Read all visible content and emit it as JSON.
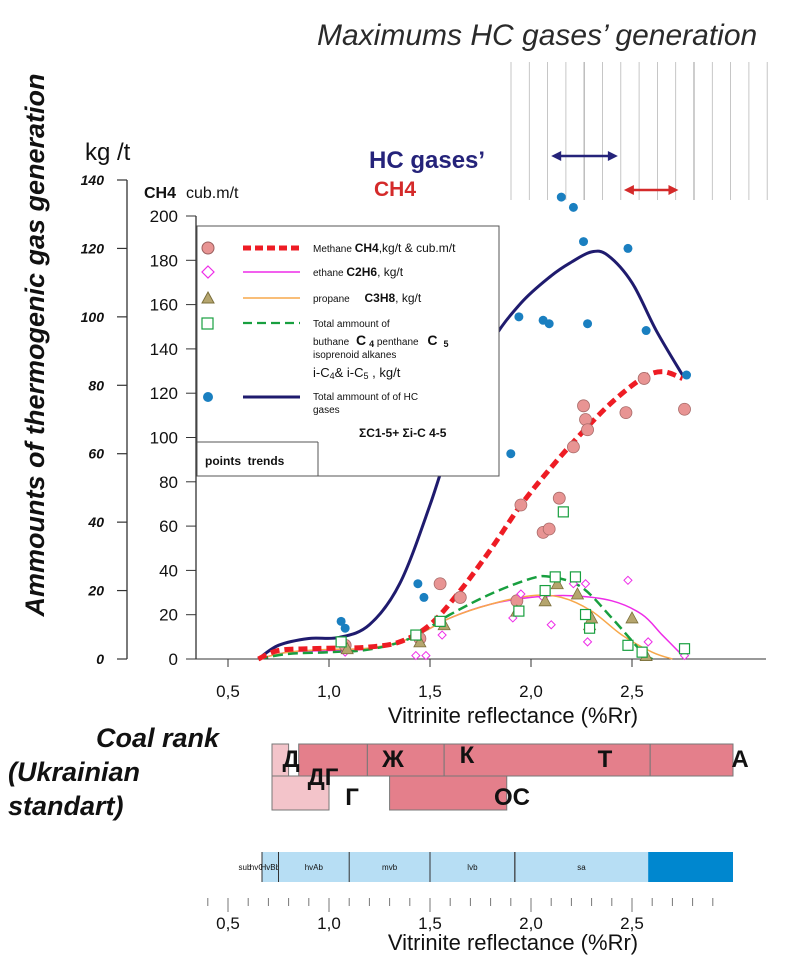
{
  "title": "Maximums HC gases’ generation",
  "y_axis_title": "Ammounts of thermogenic gas generation",
  "left_axis_unit": "kg /t",
  "right_axis_unit": "cub.m/t",
  "right_axis_unit_prefix": "CH4",
  "x_axis_title": "Vitrinite reflectance (%Rr)",
  "max_labels": {
    "hc_gases": "HC gases’",
    "ch4": "CH4"
  },
  "legend": {
    "methane": {
      "text": "Methane ",
      "formula": "CH4",
      "unit": ",kg/t & cub.m/t"
    },
    "ethane": {
      "text": "ethane ",
      "formula": "C2H6",
      "unit": ", kg/t"
    },
    "propane": {
      "text": "propane ",
      "formula": "C3H8",
      "unit": ", kg/t"
    },
    "c5_line1": "Total ammount of",
    "c5_line2_a": "buthane ",
    "c5_line2_b": "C",
    "c5_line2_c": "4",
    "c5_line2_d": " penthane ",
    "c5_line2_e": "C",
    "c5_line2_f": "5",
    "c5_line3": "isoprenoid alkanes",
    "c5_line4_a": "i-C",
    "c5_line4_b": "4",
    "c5_line4_c": "& i-C",
    "c5_line4_d": "5",
    "c5_line4_e": " ,   kg/t",
    "total_line1": "Total ammount of of HC",
    "total_line2": "gases",
    "sum_formula": "ΣC1-5+ Σi-C 4-5",
    "points_trends": "points  trends"
  },
  "coal_rank": {
    "title_line1": "Coal rank",
    "title_line2": "(Ukrainian",
    "title_line3": "standart)",
    "labels": [
      "Д",
      "ДГ",
      "Г",
      "Ж",
      "К",
      "Т",
      "А",
      "ОС"
    ]
  },
  "asme": {
    "labels": [
      "sub",
      "hvCb",
      "HvBb",
      "hvAb",
      "mvb",
      "lvb",
      "sa"
    ]
  },
  "colors": {
    "methane": "#ee1c24",
    "ethane": "#ee2ce8",
    "propane": "#f7a84b",
    "c5": "#189f3f",
    "total": "#1f1b6e",
    "total_points": "#1a7fc0",
    "methane_points": "#e89493",
    "propane_points": "#b5a56e",
    "rank_fill": "#e47f8b",
    "rank_light": "#f3c4ca",
    "asme_fill": "#b7def4",
    "asme_dark": "#0087cf",
    "hc_arrow": "#25237a",
    "ch4_arrow": "#d42a2a"
  },
  "chart_data": {
    "type": "scatter",
    "title": "Maximums HC gases’ generation",
    "xlabel": "Vitrinite reflectance (%Rr)",
    "ylabel": "Ammounts of thermogenic gas generation",
    "xlim": [
      0,
      3.0
    ],
    "ylim_kg_t": [
      0,
      140
    ],
    "ylim_cub_m_t": [
      0,
      200
    ],
    "x_ticks": [
      "0,5",
      "1,0",
      "1,5",
      "2,0",
      "2,5"
    ],
    "y_ticks_kg_t": [
      0,
      20,
      40,
      60,
      80,
      100,
      120,
      140
    ],
    "y_ticks_cub_m_t": [
      0,
      20,
      40,
      60,
      80,
      100,
      120,
      140,
      160,
      180,
      200
    ],
    "series": [
      {
        "name": "Methane CH4,kg/t & cub.m/t",
        "kind": "points",
        "unit": "kg/t",
        "points": [
          [
            1.08,
            4
          ],
          [
            1.45,
            6
          ],
          [
            1.55,
            22
          ],
          [
            1.65,
            18
          ],
          [
            1.93,
            17
          ],
          [
            1.95,
            45
          ],
          [
            2.06,
            37
          ],
          [
            2.09,
            38
          ],
          [
            2.14,
            47
          ],
          [
            2.21,
            62
          ],
          [
            2.26,
            74
          ],
          [
            2.27,
            70
          ],
          [
            2.28,
            67
          ],
          [
            2.47,
            72
          ],
          [
            2.56,
            82
          ],
          [
            2.76,
            73
          ]
        ]
      },
      {
        "name": "ethane C2H6, kg/t",
        "kind": "points",
        "unit": "kg/t",
        "points": [
          [
            1.08,
            2
          ],
          [
            1.43,
            1
          ],
          [
            1.48,
            1
          ],
          [
            1.56,
            7
          ],
          [
            1.91,
            12
          ],
          [
            1.95,
            19
          ],
          [
            2.06,
            18
          ],
          [
            2.1,
            10
          ],
          [
            2.21,
            22
          ],
          [
            2.27,
            22
          ],
          [
            2.28,
            5
          ],
          [
            2.48,
            23
          ],
          [
            2.58,
            5
          ],
          [
            2.76,
            1
          ]
        ]
      },
      {
        "name": "propane C3H8, kg/t",
        "kind": "points",
        "unit": "kg/t",
        "points": [
          [
            1.09,
            3
          ],
          [
            1.45,
            5
          ],
          [
            1.57,
            10
          ],
          [
            1.93,
            14
          ],
          [
            2.07,
            17
          ],
          [
            2.13,
            22
          ],
          [
            2.23,
            19
          ],
          [
            2.29,
            10
          ],
          [
            2.3,
            12
          ],
          [
            2.5,
            12
          ],
          [
            2.57,
            1
          ]
        ]
      },
      {
        "name": "Total ammount of buthane C4 penthane C5 isoprenoid alkanes i-C4& i-C5, kg/t",
        "kind": "points",
        "unit": "kg/t",
        "points": [
          [
            1.06,
            5
          ],
          [
            1.43,
            7
          ],
          [
            1.55,
            11
          ],
          [
            1.94,
            14
          ],
          [
            2.07,
            20
          ],
          [
            2.12,
            24
          ],
          [
            2.16,
            43
          ],
          [
            2.22,
            24
          ],
          [
            2.27,
            13
          ],
          [
            2.29,
            9
          ],
          [
            2.48,
            4
          ],
          [
            2.55,
            2
          ],
          [
            2.76,
            3
          ]
        ]
      },
      {
        "name": "Total ammount of of HC gases",
        "kind": "points",
        "unit": "kg/t",
        "points": [
          [
            1.06,
            11
          ],
          [
            1.08,
            9
          ],
          [
            1.44,
            22
          ],
          [
            1.47,
            18
          ],
          [
            1.55,
            63
          ],
          [
            1.65,
            58
          ],
          [
            1.9,
            60
          ],
          [
            1.94,
            100
          ],
          [
            2.06,
            99
          ],
          [
            2.09,
            98
          ],
          [
            2.15,
            135
          ],
          [
            2.21,
            132
          ],
          [
            2.26,
            122
          ],
          [
            2.28,
            98
          ],
          [
            2.48,
            120
          ],
          [
            2.57,
            96
          ],
          [
            2.77,
            83
          ]
        ]
      },
      {
        "name": "Methane CH4,kg/t & cub.m/t",
        "kind": "trend",
        "unit": "kg/t",
        "points": [
          [
            0.65,
            0
          ],
          [
            0.75,
            2.5
          ],
          [
            0.9,
            3
          ],
          [
            1.05,
            3.2
          ],
          [
            1.2,
            3.5
          ],
          [
            1.35,
            5
          ],
          [
            1.5,
            10
          ],
          [
            1.65,
            20
          ],
          [
            1.8,
            32
          ],
          [
            1.95,
            45
          ],
          [
            2.1,
            56
          ],
          [
            2.25,
            66
          ],
          [
            2.4,
            75
          ],
          [
            2.55,
            82
          ],
          [
            2.65,
            84
          ],
          [
            2.75,
            82
          ]
        ]
      },
      {
        "name": "ethane C2H6, kg/t",
        "kind": "trend",
        "unit": "kg/t",
        "points": [
          [
            0.65,
            0
          ],
          [
            0.8,
            2
          ],
          [
            1.0,
            2.5
          ],
          [
            1.2,
            3
          ],
          [
            1.4,
            6
          ],
          [
            1.6,
            12
          ],
          [
            1.8,
            16
          ],
          [
            2.0,
            18
          ],
          [
            2.2,
            18.5
          ],
          [
            2.4,
            17
          ],
          [
            2.55,
            13
          ],
          [
            2.65,
            7
          ],
          [
            2.75,
            1
          ]
        ]
      },
      {
        "name": "propane C3H8, kg/t",
        "kind": "trend",
        "unit": "kg/t",
        "points": [
          [
            0.65,
            0
          ],
          [
            0.8,
            2
          ],
          [
            1.0,
            2.8
          ],
          [
            1.2,
            3.2
          ],
          [
            1.4,
            6
          ],
          [
            1.6,
            12
          ],
          [
            1.8,
            16
          ],
          [
            2.0,
            18.5
          ],
          [
            2.15,
            18
          ],
          [
            2.3,
            14
          ],
          [
            2.45,
            7
          ],
          [
            2.6,
            2
          ],
          [
            2.7,
            0
          ]
        ]
      },
      {
        "name": "Total ammount of buthane C4 penthane C5 isoprenoid alkanes i-C4& i-C5, kg/t",
        "kind": "trend",
        "unit": "kg/t",
        "points": [
          [
            0.65,
            0
          ],
          [
            0.8,
            1.5
          ],
          [
            1.0,
            2
          ],
          [
            1.2,
            2.8
          ],
          [
            1.4,
            6
          ],
          [
            1.6,
            13
          ],
          [
            1.8,
            19
          ],
          [
            2.0,
            23.5
          ],
          [
            2.1,
            24
          ],
          [
            2.25,
            21
          ],
          [
            2.4,
            12
          ],
          [
            2.55,
            2
          ],
          [
            2.6,
            0
          ]
        ]
      },
      {
        "name": "Total ammount of of HC gases",
        "kind": "trend",
        "unit": "kg/t",
        "points": [
          [
            0.65,
            0
          ],
          [
            0.75,
            4
          ],
          [
            0.9,
            6
          ],
          [
            1.05,
            6.3
          ],
          [
            1.2,
            10
          ],
          [
            1.35,
            22
          ],
          [
            1.5,
            45
          ],
          [
            1.65,
            72
          ],
          [
            1.8,
            92
          ],
          [
            1.95,
            104
          ],
          [
            2.1,
            112
          ],
          [
            2.2,
            116
          ],
          [
            2.3,
            119
          ],
          [
            2.38,
            118
          ],
          [
            2.5,
            110
          ],
          [
            2.62,
            96
          ],
          [
            2.75,
            83
          ]
        ]
      }
    ],
    "max_ranges": [
      {
        "name": "HC gases’",
        "x": [
          2.1,
          2.43
        ]
      },
      {
        "name": "CH4",
        "x": [
          2.46,
          2.73
        ]
      }
    ],
    "coal_rank_bands": [
      {
        "label": "Д",
        "x": [
          0.4,
          0.58
        ],
        "row": 1,
        "tone": "light"
      },
      {
        "label": "ДГ",
        "x": [
          0.5,
          0.8
        ],
        "row": 1,
        "tone": "light"
      },
      {
        "label": "Г",
        "x": [
          0.5,
          1.0
        ],
        "row": 2,
        "tone": "light"
      },
      {
        "label": "Ж",
        "x": [
          0.85,
          1.19
        ],
        "row": 1,
        "tone": "dark"
      },
      {
        "label": "К",
        "x": [
          1.19,
          1.57
        ],
        "row": 1,
        "tone": "dark"
      },
      {
        "label": "Т",
        "x": [
          1.57,
          2.59
        ],
        "row": 1,
        "tone": "dark"
      },
      {
        "label": "А",
        "x": [
          2.59,
          3.0
        ],
        "row": 1,
        "tone": "dark"
      },
      {
        "label": "ОС",
        "x": [
          1.3,
          1.88
        ],
        "row": 2,
        "tone": "dark"
      }
    ],
    "asme_bands": [
      {
        "label": "sub",
        "x": [
          0.4,
          0.5
        ]
      },
      {
        "label": "hvCb",
        "x": [
          0.5,
          0.64
        ]
      },
      {
        "label": "HvBb",
        "x": [
          0.64,
          0.75
        ]
      },
      {
        "label": "hvAb",
        "x": [
          0.75,
          1.1
        ]
      },
      {
        "label": "mvb",
        "x": [
          1.1,
          1.5
        ]
      },
      {
        "label": "lvb",
        "x": [
          1.5,
          1.92
        ]
      },
      {
        "label": "sa",
        "x": [
          1.92,
          2.58
        ]
      },
      {
        "label": "",
        "x": [
          2.58,
          3.0
        ]
      }
    ]
  }
}
